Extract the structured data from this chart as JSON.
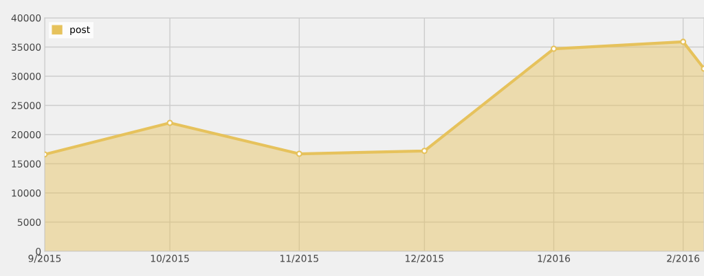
{
  "chart_data": {
    "type": "area",
    "x": [
      "2015-09-01",
      "2015-10-01",
      "2015-11-01",
      "2015-12-01",
      "2016-01-01",
      "2016-02-01",
      "2016-02-06"
    ],
    "series": [
      {
        "name": "post",
        "color": "#e6c25c",
        "values": [
          16600,
          22000,
          16700,
          17200,
          34700,
          35900,
          31300
        ]
      }
    ],
    "xlim": [
      "2015-09-01",
      "2016-02-06"
    ],
    "xticks": [
      {
        "value": "2015-09-01",
        "label": "9/2015"
      },
      {
        "value": "2015-10-01",
        "label": "10/2015"
      },
      {
        "value": "2015-11-01",
        "label": "11/2015"
      },
      {
        "value": "2015-12-01",
        "label": "12/2015"
      },
      {
        "value": "2016-01-01",
        "label": "1/2016"
      },
      {
        "value": "2016-02-01",
        "label": "2/2016"
      }
    ],
    "ylim": [
      0,
      40000
    ],
    "yticks": [
      0,
      5000,
      10000,
      15000,
      20000,
      25000,
      30000,
      35000,
      40000
    ],
    "grid": true,
    "legend": "top left",
    "marker": "circle"
  }
}
